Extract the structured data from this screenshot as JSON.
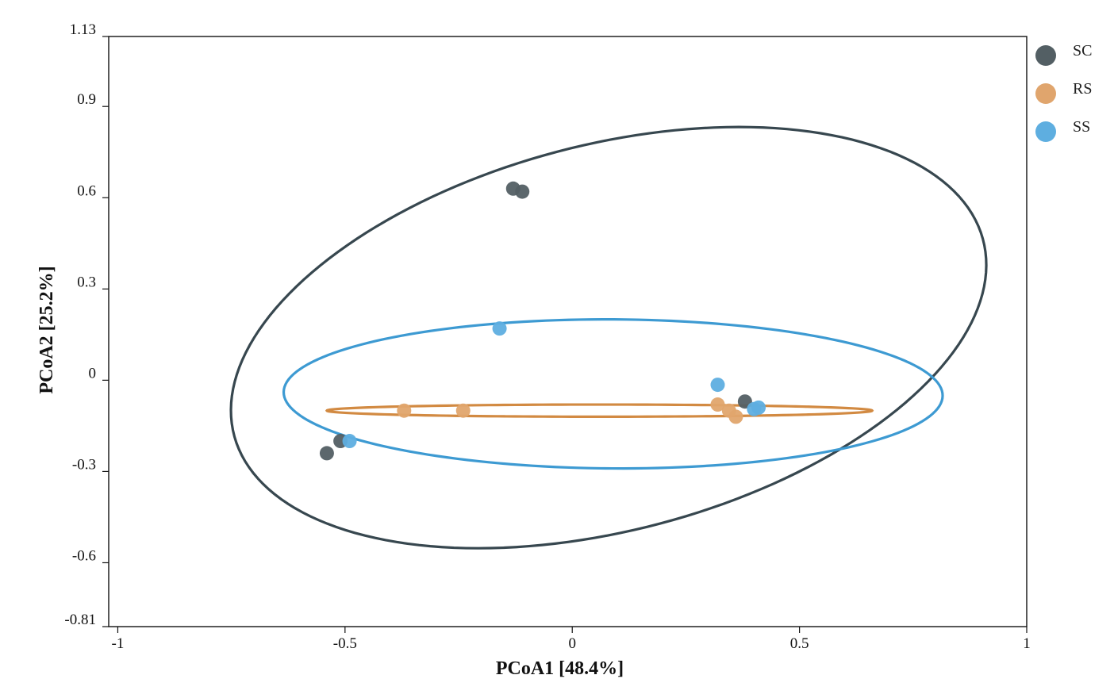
{
  "chart_data": {
    "type": "scatter",
    "title": "",
    "xlabel": "PCoA1 [48.4%]",
    "ylabel": "PCoA2 [25.2%]",
    "xlim": [
      -1.02,
      1.0
    ],
    "ylim": [
      -0.81,
      1.13
    ],
    "xticks": [
      -1,
      -0.5,
      0,
      0.5,
      1
    ],
    "xtick_labels": [
      "-1",
      "-0.5",
      "0",
      "0.5",
      "1"
    ],
    "yticks": [
      -0.81,
      -0.6,
      -0.3,
      0,
      0.3,
      0.6,
      0.9,
      1.13
    ],
    "ytick_labels": [
      "-0.81",
      "-0.6",
      "-0.3",
      "0",
      "0.3",
      "0.6",
      "0.9",
      "1.13"
    ],
    "grid": false,
    "legend_position": "top-right-outside",
    "series": [
      {
        "name": "SC",
        "color": "#535f64",
        "ellipse_color": "#37474f",
        "points": [
          [
            -0.13,
            0.63
          ],
          [
            -0.11,
            0.62
          ],
          [
            -0.51,
            -0.2
          ],
          [
            -0.54,
            -0.24
          ],
          [
            0.38,
            -0.07
          ]
        ],
        "ellipse": {
          "cx": 0.08,
          "cy": 0.14,
          "rx": 0.9,
          "ry": 0.6,
          "angle": 31
        }
      },
      {
        "name": "RS",
        "color": "#e0a56d",
        "ellipse_color": "#d28a42",
        "points": [
          [
            -0.37,
            -0.1
          ],
          [
            -0.24,
            -0.1
          ],
          [
            0.32,
            -0.08
          ],
          [
            0.345,
            -0.1
          ],
          [
            0.36,
            -0.12
          ]
        ],
        "ellipse": {
          "cx": 0.06,
          "cy": -0.1,
          "rx": 0.6,
          "ry": 0.02,
          "angle": 0
        }
      },
      {
        "name": "SS",
        "color": "#5eaee0",
        "ellipse_color": "#3d9ad2",
        "points": [
          [
            -0.16,
            0.17
          ],
          [
            -0.49,
            -0.2
          ],
          [
            0.32,
            -0.015
          ],
          [
            0.4,
            -0.095
          ],
          [
            0.41,
            -0.09
          ]
        ],
        "ellipse": {
          "cx": 0.09,
          "cy": -0.045,
          "rx": 0.725,
          "ry": 0.245,
          "angle": -0.5
        }
      }
    ]
  }
}
